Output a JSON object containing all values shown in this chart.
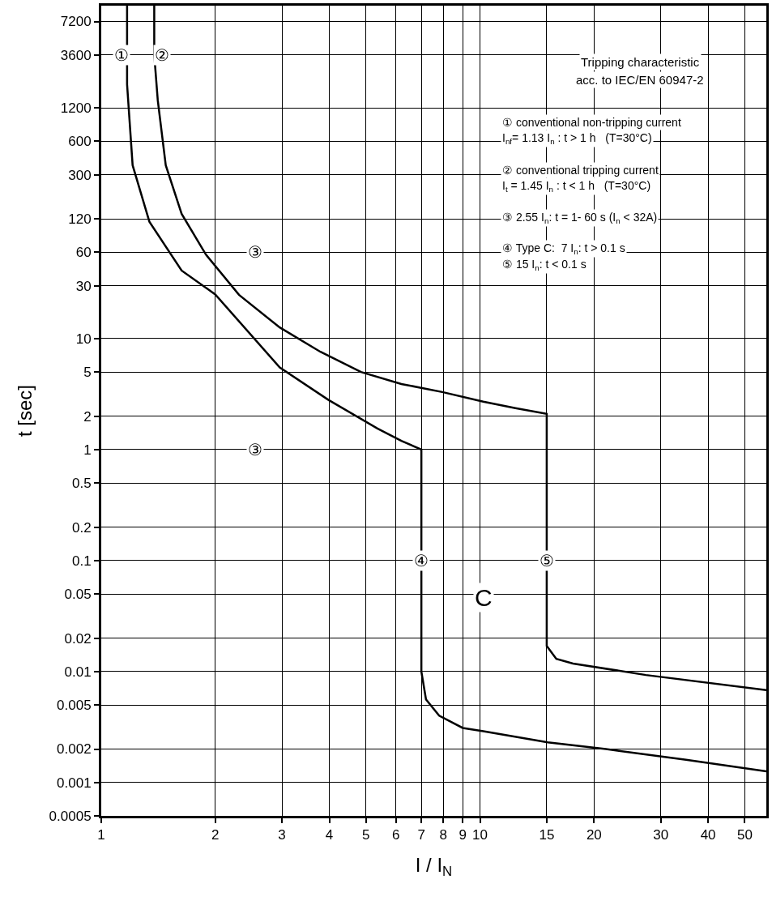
{
  "chart_data": {
    "type": "line",
    "xlabel": "I / I$_{N}$",
    "ylabel": "t [sec]",
    "log": "xy",
    "grid": true,
    "line_style": "solid",
    "marker": "none",
    "xlim": [
      1,
      57
    ],
    "xticks": [
      1,
      2,
      3,
      4,
      5,
      6,
      7,
      8,
      9,
      10,
      15,
      20,
      30,
      40,
      50
    ],
    "ylim": [
      0.0005,
      10000
    ],
    "yticks": [
      0.0005,
      0.001,
      0.002,
      0.005,
      0.01,
      0.02,
      0.05,
      0.1,
      0.2,
      0.5,
      1,
      2,
      5,
      10,
      30,
      60,
      120,
      300,
      600,
      1200,
      3600,
      7200
    ],
    "series": [
      {
        "color": "#000000",
        "x": [
          1.17,
          1.17,
          1.21,
          1.34,
          1.63,
          2.0,
          2.96,
          3.98,
          5.36,
          6.2,
          7.0,
          7.0,
          7.2,
          7.8,
          9.0,
          10.2,
          15.1,
          21.5,
          35,
          57
        ],
        "values": [
          10000,
          1950,
          365,
          113,
          41,
          25,
          5.5,
          2.8,
          1.55,
          1.2,
          1.0,
          0.01,
          0.0056,
          0.004,
          0.0031,
          0.0029,
          0.0023,
          0.002,
          0.0016,
          0.00126
        ]
      },
      {
        "color": "#000000",
        "x": [
          57,
          27.4,
          17.6,
          15.9,
          15.0,
          15.0,
          12.4,
          10.2,
          7.95,
          6.2,
          4.85,
          3.79,
          2.96,
          2.31,
          1.89,
          1.63,
          1.48,
          1.41,
          1.38,
          1.38
        ],
        "values": [
          0.0068,
          0.0093,
          0.0118,
          0.013,
          0.017,
          2.1,
          2.36,
          2.7,
          3.3,
          3.9,
          5.0,
          7.6,
          12.6,
          24.8,
          57,
          133,
          365,
          1400,
          3600,
          10000
        ]
      }
    ],
    "annotations": [
      "Tripping characteristic",
      "acc. to IEC/EN 60947-2",
      "① conventional non-tripping current",
      "I$_{nf}$= 1.13 I$_{n}$ : t > 1 h   (T=30°C)",
      "② conventional tripping current",
      "I$_{t}$ = 1.45 I$_{n}$ : t < 1 h   (T=30°C)",
      "③ 2.55 I$_{n}$: t = 1- 60 s (I$_{n}$ < 32A)",
      "④ Type C:  7 I$_{n}$: t > 0.1 s",
      "⑤ 15 I$_{n}$: t < 0.1 s",
      {
        "text": "①",
        "x": 1.13,
        "y": 3600
      },
      {
        "text": "②",
        "x": 1.45,
        "y": 3600
      },
      {
        "text": "③",
        "x": 2.55,
        "y": 60
      },
      {
        "text": "③",
        "x": 2.55,
        "y": 1
      },
      {
        "text": "④",
        "x": 7,
        "y": 0.1
      },
      {
        "text": "⑤",
        "x": 15,
        "y": 0.1
      },
      "C"
    ]
  }
}
